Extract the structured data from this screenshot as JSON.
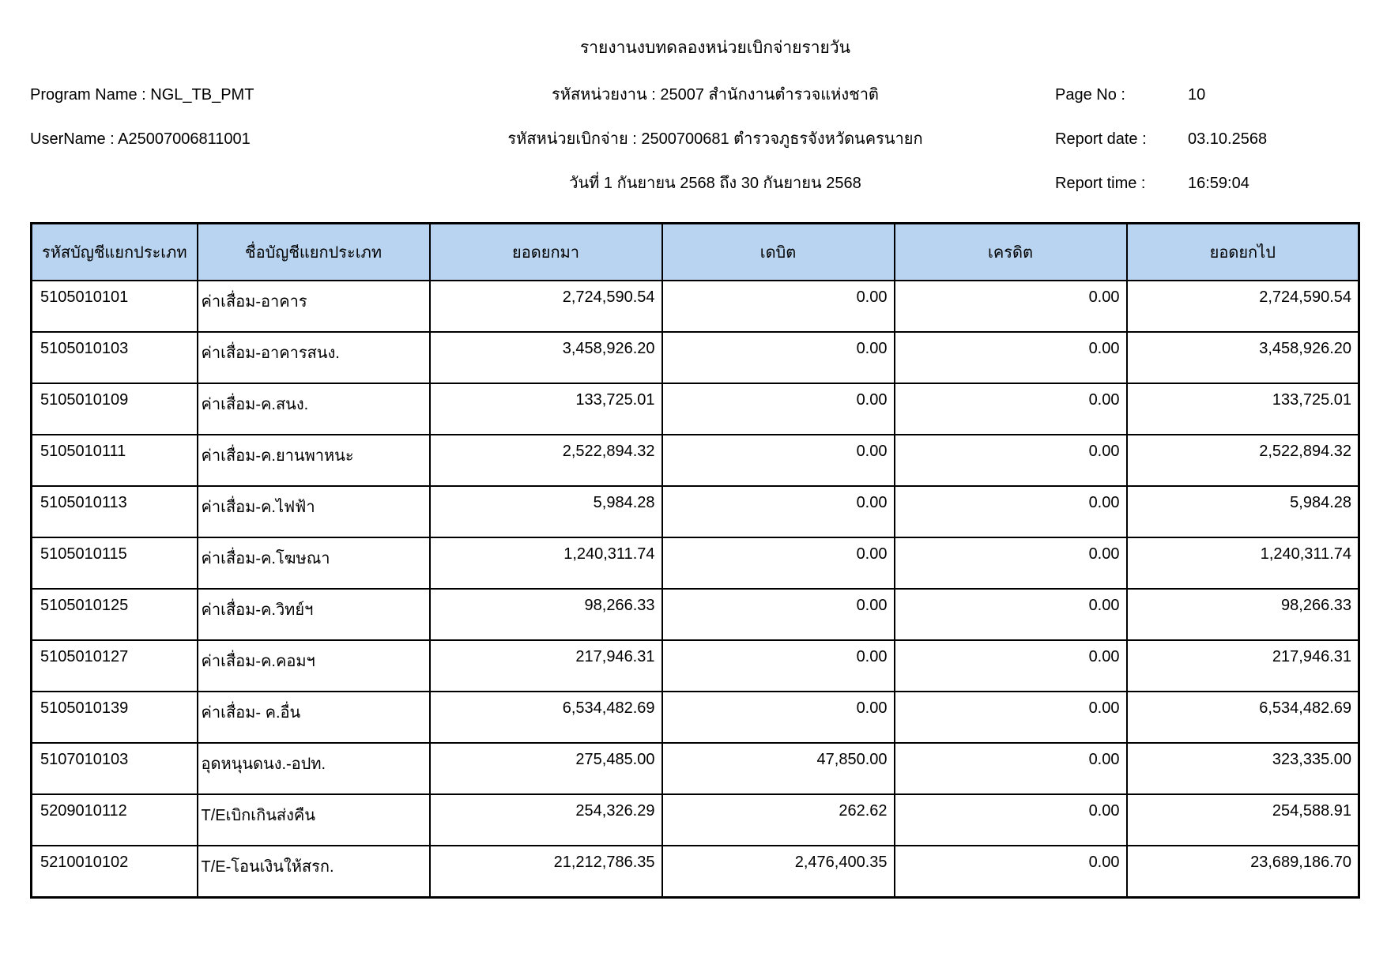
{
  "title": "รายงานงบทดลองหน่วยเบิกจ่ายรายวัน",
  "meta": {
    "left": [
      {
        "label": "Program Name :",
        "value": "NGL_TB_PMT"
      },
      {
        "label": "UserName :",
        "value": "A25007006811001"
      },
      {
        "label": "",
        "value": ""
      }
    ],
    "center": [
      "รหัสหน่วยงาน : 25007 สำนักงานตำรวจแห่งชาติ",
      "รหัสหน่วยเบิกจ่าย : 2500700681 ตำรวจภูธรจังหวัดนครนายก",
      "วันที่ 1 กันยายน 2568 ถึง 30 กันยายน 2568"
    ],
    "right": [
      {
        "label": "Page No :",
        "value": "10"
      },
      {
        "label": "Report date :",
        "value": "03.10.2568"
      },
      {
        "label": "Report time :",
        "value": "16:59:04"
      }
    ]
  },
  "table": {
    "columns": [
      "รหัสบัญชีแยกประเภท",
      "ชื่อบัญชีแยกประเภท",
      "ยอดยกมา",
      "เดบิต",
      "เครดิต",
      "ยอดยกไป"
    ],
    "rows": [
      [
        "5105010101",
        "ค่าเสื่อม-อาคาร",
        "2,724,590.54",
        "0.00",
        "0.00",
        "2,724,590.54"
      ],
      [
        "5105010103",
        "ค่าเสื่อม-อาคารสนง.",
        "3,458,926.20",
        "0.00",
        "0.00",
        "3,458,926.20"
      ],
      [
        "5105010109",
        "ค่าเสื่อม-ค.สนง.",
        "133,725.01",
        "0.00",
        "0.00",
        "133,725.01"
      ],
      [
        "5105010111",
        "ค่าเสื่อม-ค.ยานพาหนะ",
        "2,522,894.32",
        "0.00",
        "0.00",
        "2,522,894.32"
      ],
      [
        "5105010113",
        "ค่าเสื่อม-ค.ไฟฟ้า",
        "5,984.28",
        "0.00",
        "0.00",
        "5,984.28"
      ],
      [
        "5105010115",
        "ค่าเสื่อม-ค.โฆษณา",
        "1,240,311.74",
        "0.00",
        "0.00",
        "1,240,311.74"
      ],
      [
        "5105010125",
        "ค่าเสื่อม-ค.วิทย์ฯ",
        "98,266.33",
        "0.00",
        "0.00",
        "98,266.33"
      ],
      [
        "5105010127",
        "ค่าเสื่อม-ค.คอมฯ",
        "217,946.31",
        "0.00",
        "0.00",
        "217,946.31"
      ],
      [
        "5105010139",
        "ค่าเสื่อม- ค.อื่น",
        "6,534,482.69",
        "0.00",
        "0.00",
        "6,534,482.69"
      ],
      [
        "5107010103",
        "อุดหนุนดนง.-อปท.",
        "275,485.00",
        "47,850.00",
        "0.00",
        "323,335.00"
      ],
      [
        "5209010112",
        "T/Eเบิกเกินส่งคืน",
        "254,326.29",
        "262.62",
        "0.00",
        "254,588.91"
      ],
      [
        "5210010102",
        "T/E-โอนเงินให้สรก.",
        "21,212,786.35",
        "2,476,400.35",
        "0.00",
        "23,689,186.70"
      ]
    ]
  },
  "colors": {
    "header_bg": "#B8D4F0",
    "border": "#000000"
  }
}
